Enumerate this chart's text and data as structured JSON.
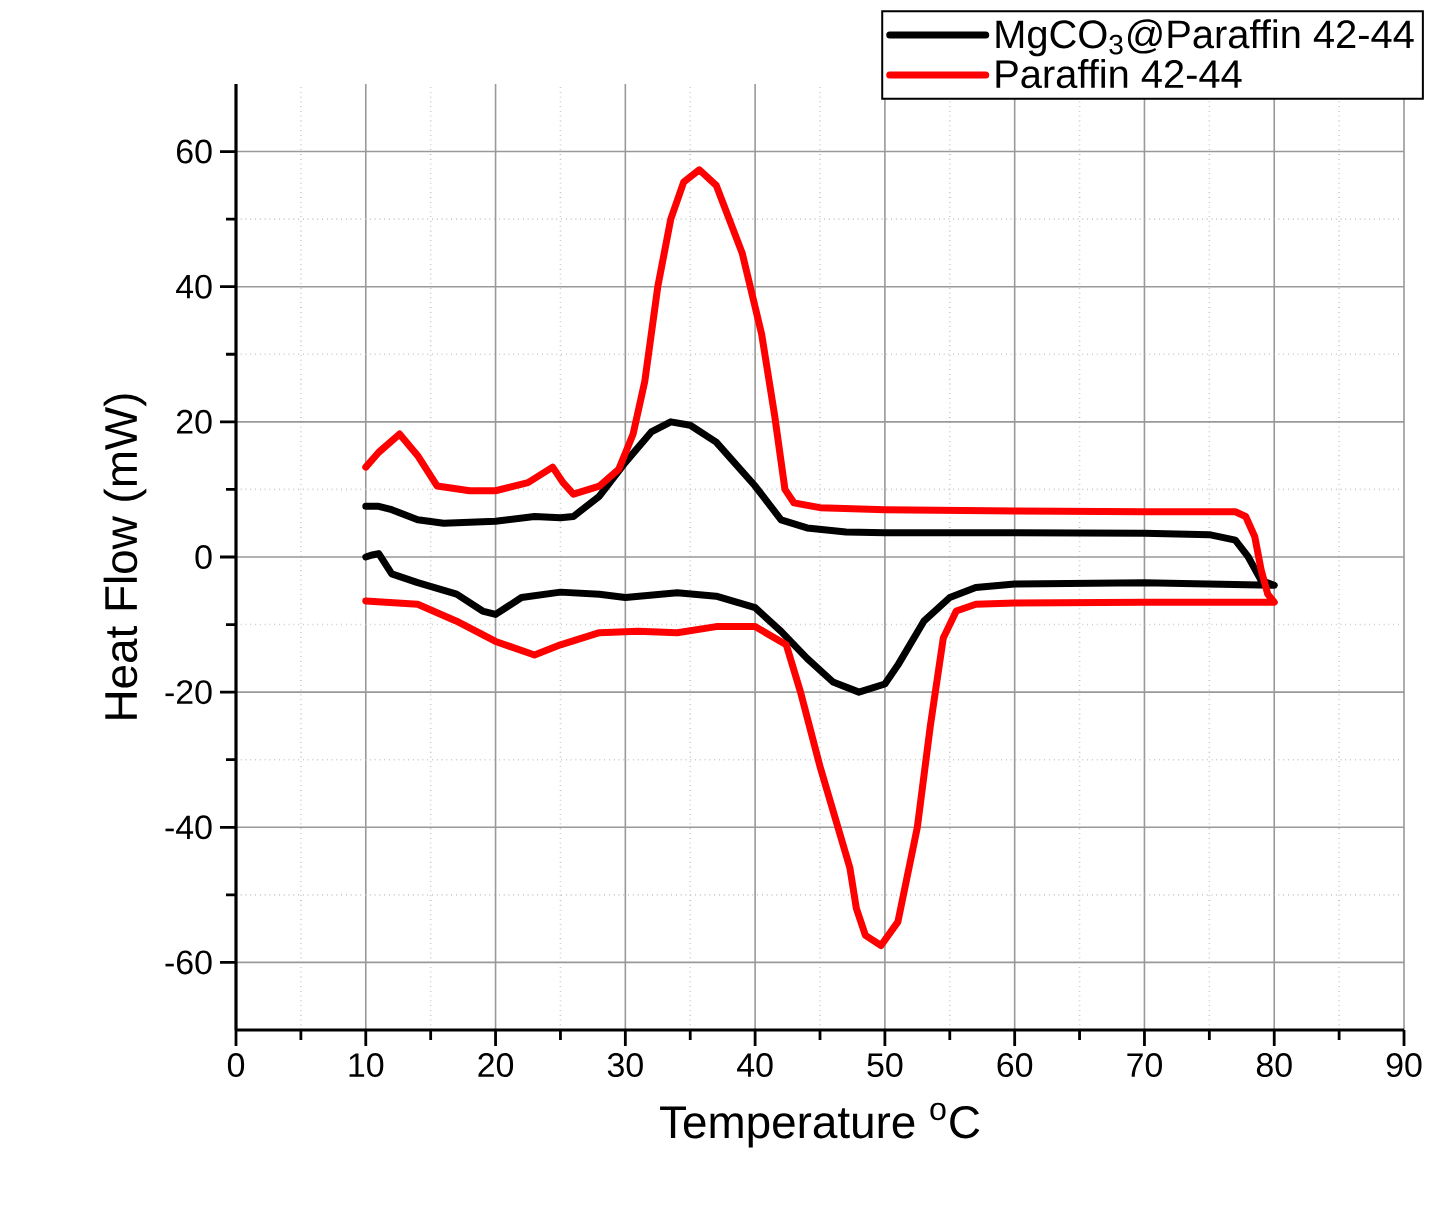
{
  "chart_data": {
    "type": "line",
    "xlabel": "Temperature $^{o}$C",
    "ylabel": "Heat Flow (mW)",
    "xlim": [
      0,
      90
    ],
    "ylim": [
      -70,
      70
    ],
    "xticks": [
      0,
      10,
      20,
      30,
      40,
      50,
      60,
      70,
      80,
      90
    ],
    "yticks": [
      -60,
      -40,
      -20,
      0,
      20,
      40,
      60
    ],
    "grid": true,
    "legend": "top right",
    "marker": "none",
    "line_style": "solid",
    "series": [
      {
        "name": "MgCO$_{3}$@Paraffin 42-44",
        "color": "#000000",
        "x": [
          10,
          11,
          12,
          14,
          16,
          20,
          23,
          25,
          26,
          28,
          30,
          32,
          33.5,
          35,
          37,
          40,
          42,
          44,
          47,
          50,
          60,
          70,
          75,
          77,
          78,
          79,
          80,
          70,
          60,
          57,
          55,
          53,
          51,
          50,
          48,
          46,
          44,
          42,
          40,
          37,
          34,
          30,
          28,
          25,
          22,
          20,
          19,
          17,
          14,
          12,
          11,
          10.5,
          10
        ],
        "values": [
          7.5,
          7.5,
          7,
          5.5,
          5,
          5.3,
          6,
          5.8,
          6,
          9,
          14,
          18.5,
          20,
          19.5,
          17,
          10.5,
          5.5,
          4.3,
          3.7,
          3.6,
          3.6,
          3.5,
          3.3,
          2.5,
          0,
          -3.5,
          -4.2,
          -3.8,
          -4,
          -4.5,
          -6,
          -9.5,
          -16,
          -18.8,
          -20,
          -18.5,
          -15,
          -11,
          -7.5,
          -5.8,
          -5.3,
          -6,
          -5.5,
          -5.2,
          -6,
          -8.5,
          -8,
          -5.5,
          -3.8,
          -2.5,
          0.5,
          0.3,
          0
        ]
      },
      {
        "name": "Paraffin 42-44",
        "color": "#ff0000",
        "x": [
          10,
          11,
          12.6,
          14,
          15.5,
          18,
          20,
          22.5,
          24.4,
          25.2,
          26,
          28,
          29.5,
          30.6,
          31.5,
          32.5,
          33.5,
          34.5,
          35.7,
          37,
          39,
          40.5,
          41.5,
          42.3,
          43,
          45,
          50,
          60,
          70,
          77,
          77.8,
          78.5,
          79,
          79.5,
          80,
          70,
          60,
          57,
          55.5,
          54.5,
          53.5,
          52.5,
          51,
          49.7,
          48.5,
          47.8,
          47.3,
          45,
          43.5,
          42.4,
          40,
          37,
          34,
          31,
          28,
          25,
          23,
          20,
          17,
          14,
          10
        ],
        "values": [
          13.3,
          15.5,
          18.2,
          15,
          10.5,
          9.8,
          9.8,
          11,
          13.3,
          11,
          9.3,
          10.5,
          13,
          18.2,
          26,
          40,
          50,
          55.5,
          57.3,
          55,
          45,
          33,
          21,
          10,
          8,
          7.3,
          7,
          6.8,
          6.7,
          6.7,
          6,
          3,
          -2,
          -5.5,
          -6.7,
          -6.7,
          -6.8,
          -7,
          -8,
          -12,
          -25,
          -40,
          -54,
          -57.5,
          -56,
          -52,
          -46,
          -31,
          -20,
          -13,
          -10.3,
          -10.3,
          -11.2,
          -11,
          -11.2,
          -13,
          -14.5,
          -12.5,
          -9.5,
          -7,
          -6.5
        ]
      }
    ]
  }
}
